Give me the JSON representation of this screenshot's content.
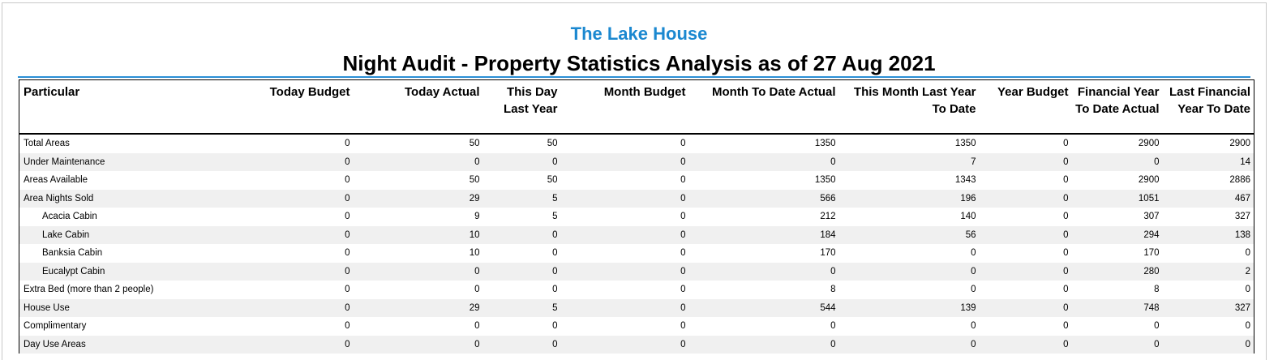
{
  "report": {
    "property_name": "The Lake House",
    "title": "Night Audit - Property Statistics Analysis as of 27 Aug 2021"
  },
  "table": {
    "headers": [
      "Particular",
      "Today Budget",
      "Today Actual",
      "This Day Last Year",
      "Month Budget",
      "Month To Date Actual",
      "This Month Last Year To Date",
      "Year Budget",
      "Financial Year To Date Actual",
      "Last Financial Year To Date"
    ],
    "rows": [
      {
        "label": "Total Areas",
        "indent": false,
        "values": [
          "0",
          "50",
          "50",
          "0",
          "1350",
          "1350",
          "0",
          "2900",
          "2900"
        ]
      },
      {
        "label": "Under Maintenance",
        "indent": false,
        "values": [
          "0",
          "0",
          "0",
          "0",
          "0",
          "7",
          "0",
          "0",
          "14"
        ]
      },
      {
        "label": "Areas Available",
        "indent": false,
        "values": [
          "0",
          "50",
          "50",
          "0",
          "1350",
          "1343",
          "0",
          "2900",
          "2886"
        ]
      },
      {
        "label": "Area Nights Sold",
        "indent": false,
        "values": [
          "0",
          "29",
          "5",
          "0",
          "566",
          "196",
          "0",
          "1051",
          "467"
        ]
      },
      {
        "label": "Acacia Cabin",
        "indent": true,
        "values": [
          "0",
          "9",
          "5",
          "0",
          "212",
          "140",
          "0",
          "307",
          "327"
        ]
      },
      {
        "label": "Lake Cabin",
        "indent": true,
        "values": [
          "0",
          "10",
          "0",
          "0",
          "184",
          "56",
          "0",
          "294",
          "138"
        ]
      },
      {
        "label": "Banksia Cabin",
        "indent": true,
        "values": [
          "0",
          "10",
          "0",
          "0",
          "170",
          "0",
          "0",
          "170",
          "0"
        ]
      },
      {
        "label": "Eucalypt Cabin",
        "indent": true,
        "values": [
          "0",
          "0",
          "0",
          "0",
          "0",
          "0",
          "0",
          "280",
          "2"
        ]
      },
      {
        "label": "Extra Bed (more than 2 people)",
        "indent": false,
        "values": [
          "0",
          "0",
          "0",
          "0",
          "8",
          "0",
          "0",
          "8",
          "0"
        ]
      },
      {
        "label": "House Use",
        "indent": false,
        "values": [
          "0",
          "29",
          "5",
          "0",
          "544",
          "139",
          "0",
          "748",
          "327"
        ]
      },
      {
        "label": "Complimentary",
        "indent": false,
        "values": [
          "0",
          "0",
          "0",
          "0",
          "0",
          "0",
          "0",
          "0",
          "0"
        ]
      },
      {
        "label": "Day Use Areas",
        "indent": false,
        "values": [
          "0",
          "0",
          "0",
          "0",
          "0",
          "0",
          "0",
          "0",
          "0"
        ]
      }
    ]
  },
  "colors": {
    "accent": "#1b88d0",
    "rule": "#2a8fd6",
    "stripe": "#f0f0f0"
  }
}
